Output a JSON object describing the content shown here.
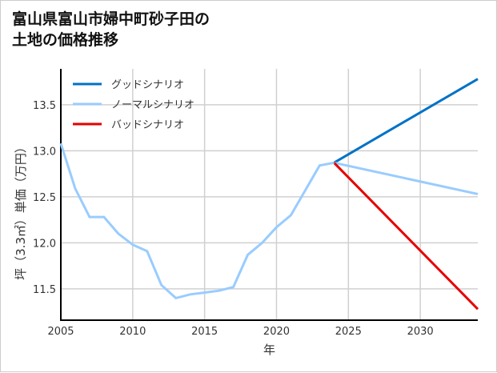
{
  "chart_data": {
    "type": "line",
    "title": "富山県富山市婦中町砂子田の\n土地の価格推移",
    "xlabel": "年",
    "ylabel": "坪（3.3㎡）単価（万円）",
    "xlim": [
      2005,
      2034
    ],
    "ylim": [
      11.16,
      13.89
    ],
    "xticks": [
      2005,
      2010,
      2015,
      2020,
      2025,
      2030
    ],
    "yticks": [
      11.5,
      12.0,
      12.5,
      13.0,
      13.5
    ],
    "ytick_labels": [
      "11.5",
      "12.0",
      "12.5",
      "13.0",
      "13.5"
    ],
    "grid": true,
    "legend_position": "top-left",
    "history": {
      "x": [
        2005,
        2006,
        2007,
        2008,
        2009,
        2010,
        2011,
        2012,
        2013,
        2014,
        2015,
        2016,
        2017,
        2018,
        2019,
        2020,
        2021,
        2022,
        2023,
        2024
      ],
      "y": [
        13.08,
        12.59,
        12.28,
        12.28,
        12.1,
        11.98,
        11.91,
        11.54,
        11.4,
        11.44,
        11.46,
        11.48,
        11.52,
        11.87,
        12.0,
        12.17,
        12.3,
        12.57,
        12.84,
        12.87
      ]
    },
    "series": [
      {
        "name": "グッドシナリオ",
        "color": "#0072c6",
        "x": [
          2024,
          2034
        ],
        "y": [
          12.87,
          13.78
        ]
      },
      {
        "name": "ノーマルシナリオ",
        "color": "#99ccff",
        "x": [
          2024,
          2034
        ],
        "y": [
          12.87,
          12.53
        ]
      },
      {
        "name": "バッドシナリオ",
        "color": "#e60000",
        "x": [
          2024,
          2034
        ],
        "y": [
          12.87,
          11.28
        ]
      }
    ]
  }
}
